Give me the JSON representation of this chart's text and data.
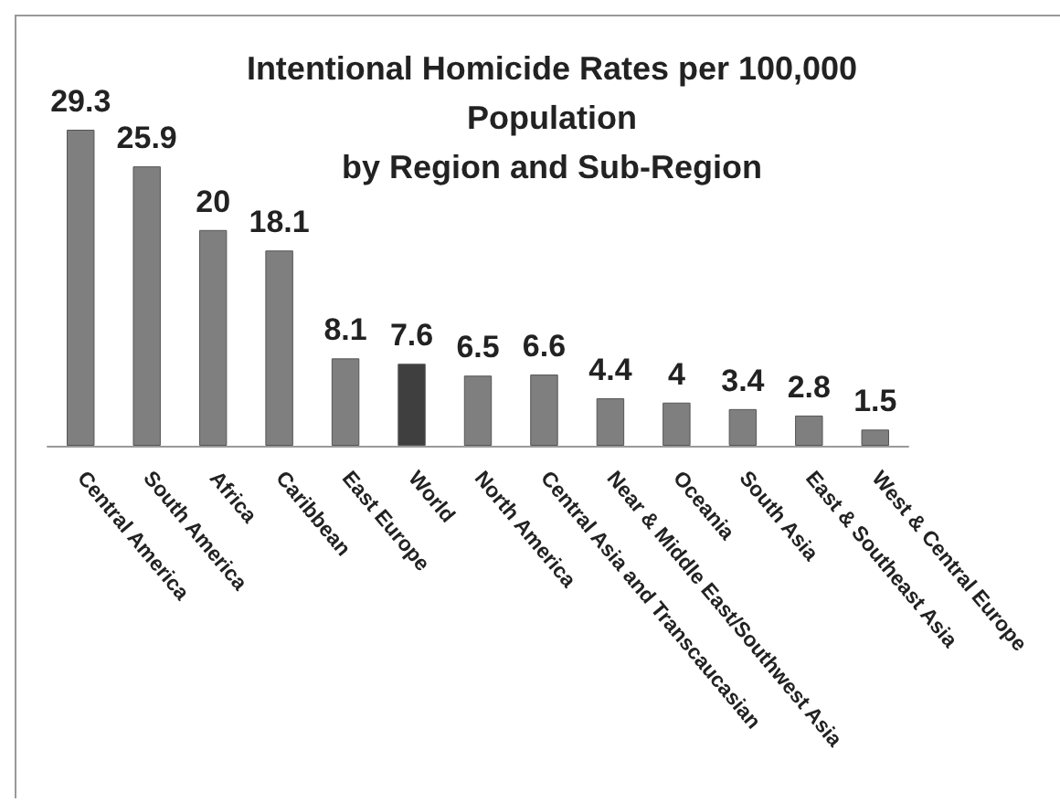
{
  "chart_data": {
    "type": "bar",
    "title": "Intentional Homicide Rates per 100,000\nPopulation\nby Region and Sub-Region",
    "categories": [
      "Central America",
      "South America",
      "Africa",
      "Caribbean",
      "East Europe",
      "World",
      "North America",
      "Central Asia and Transcaucasian",
      "Near & Middle East/Southwest Asia",
      "Oceania",
      "South Asia",
      "East & Southeast Asia",
      "West & Central Europe"
    ],
    "values": [
      29.3,
      25.9,
      20,
      18.1,
      8.1,
      7.6,
      6.5,
      6.6,
      4.4,
      4,
      3.4,
      2.8,
      1.5
    ],
    "colors": [
      "#7f7f7f",
      "#7f7f7f",
      "#7f7f7f",
      "#7f7f7f",
      "#7f7f7f",
      "#3f3f3f",
      "#7f7f7f",
      "#7f7f7f",
      "#7f7f7f",
      "#7f7f7f",
      "#7f7f7f",
      "#7f7f7f",
      "#7f7f7f"
    ],
    "data_labels": true
  }
}
